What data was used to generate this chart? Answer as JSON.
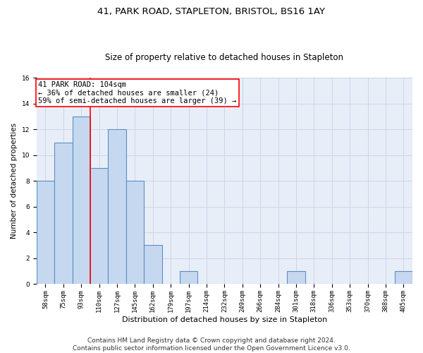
{
  "title": "41, PARK ROAD, STAPLETON, BRISTOL, BS16 1AY",
  "subtitle": "Size of property relative to detached houses in Stapleton",
  "xlabel": "Distribution of detached houses by size in Stapleton",
  "ylabel": "Number of detached properties",
  "categories": [
    "58sqm",
    "75sqm",
    "93sqm",
    "110sqm",
    "127sqm",
    "145sqm",
    "162sqm",
    "179sqm",
    "197sqm",
    "214sqm",
    "232sqm",
    "249sqm",
    "266sqm",
    "284sqm",
    "301sqm",
    "318sqm",
    "336sqm",
    "353sqm",
    "370sqm",
    "388sqm",
    "405sqm"
  ],
  "values": [
    8,
    11,
    13,
    9,
    12,
    8,
    3,
    0,
    1,
    0,
    0,
    0,
    0,
    0,
    1,
    0,
    0,
    0,
    0,
    0,
    1
  ],
  "bar_color": "#c5d8f0",
  "bar_edgecolor": "#5a8fc3",
  "bar_linewidth": 0.8,
  "property_line_x": 2.5,
  "annotation_title": "41 PARK ROAD: 104sqm",
  "annotation_line1": "← 36% of detached houses are smaller (24)",
  "annotation_line2": "59% of semi-detached houses are larger (39) →",
  "annotation_box_color": "white",
  "annotation_box_edgecolor": "red",
  "vline_color": "red",
  "vline_linewidth": 1.2,
  "ylim": [
    0,
    16
  ],
  "yticks": [
    0,
    2,
    4,
    6,
    8,
    10,
    12,
    14,
    16
  ],
  "grid_color": "#ccd6e8",
  "background_color": "#e8eef8",
  "footer": "Contains HM Land Registry data © Crown copyright and database right 2024.\nContains public sector information licensed under the Open Government Licence v3.0.",
  "title_fontsize": 9.5,
  "subtitle_fontsize": 8.5,
  "xlabel_fontsize": 8,
  "ylabel_fontsize": 7.5,
  "tick_fontsize": 6.5,
  "annotation_fontsize": 7.5,
  "footer_fontsize": 6.5
}
